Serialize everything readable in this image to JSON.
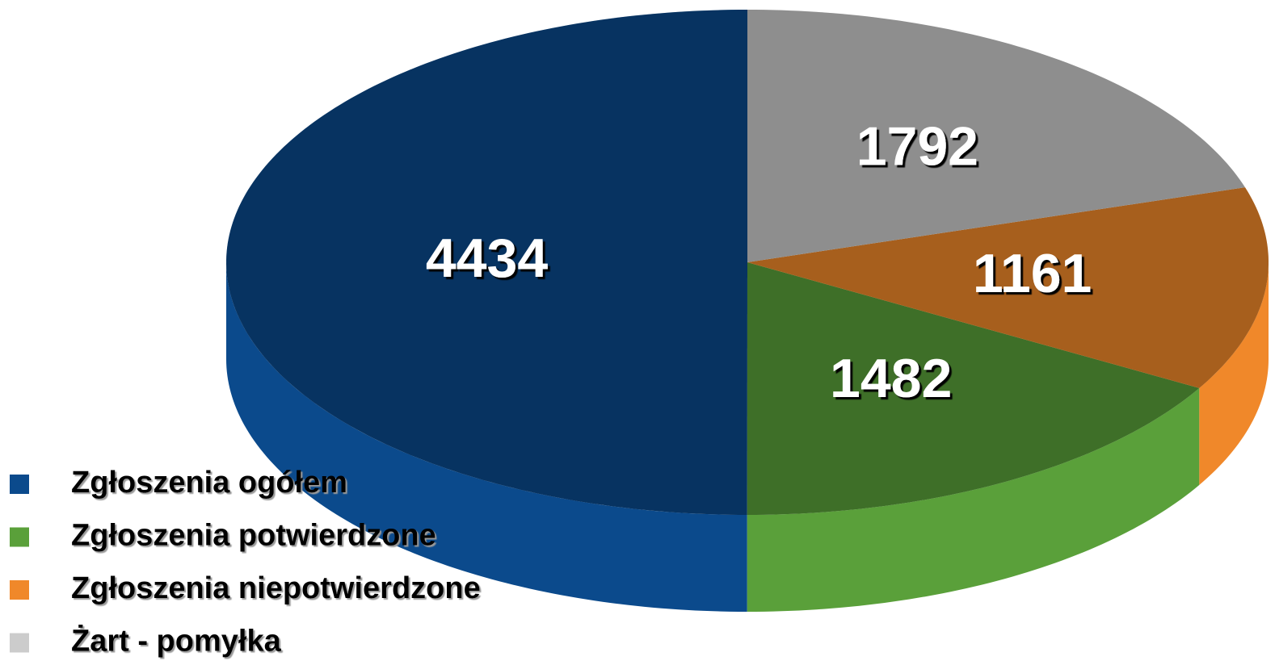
{
  "chart_data": {
    "type": "pie",
    "categories": [
      "Zgłoszenia ogółem",
      "Zgłoszenia potwierdzone",
      "Zgłoszenia niepotwierdzone",
      "Żart - pomyłka"
    ],
    "values": [
      4434,
      1482,
      1161,
      1792
    ],
    "colors": [
      "#0b4a8c",
      "#5aa03a",
      "#f0882a",
      "#cccccc"
    ],
    "legend": "bottom-left"
  }
}
